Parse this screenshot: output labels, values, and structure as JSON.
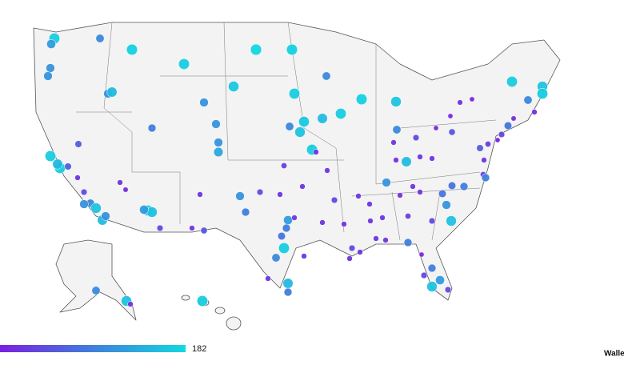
{
  "legend": {
    "max": 182,
    "colors": [
      "#7b1fe0",
      "#3f7fdb",
      "#12d8e0"
    ]
  },
  "brand": "Walle",
  "points": {
    "values": [
      170,
      120,
      100,
      175,
      180,
      170,
      175,
      110,
      110,
      110,
      150,
      100,
      165,
      170,
      110,
      175,
      160,
      170,
      150,
      165,
      90,
      110,
      160,
      100,
      100,
      15,
      5,
      5,
      5,
      40,
      50,
      170,
      160,
      170,
      100,
      20,
      10,
      80,
      40,
      30,
      60,
      5,
      60,
      170,
      170,
      150,
      60,
      20,
      110,
      130,
      170,
      20,
      30,
      20,
      20,
      150,
      20,
      20,
      20,
      20,
      30,
      90,
      80,
      90,
      80,
      20,
      20,
      110,
      20,
      20,
      20,
      40,
      20,
      20,
      40,
      110,
      20,
      20,
      10,
      40,
      100,
      160,
      150,
      110,
      110,
      170,
      160,
      120,
      40,
      20,
      50,
      90,
      120,
      20,
      90,
      80,
      170,
      100,
      20,
      20,
      150,
      90,
      20,
      20,
      20,
      20,
      30,
      40,
      110,
      160,
      90,
      20,
      20,
      40,
      20,
      20,
      5,
      90,
      40,
      120,
      40,
      160,
      100,
      160,
      20,
      170
    ]
  }
}
